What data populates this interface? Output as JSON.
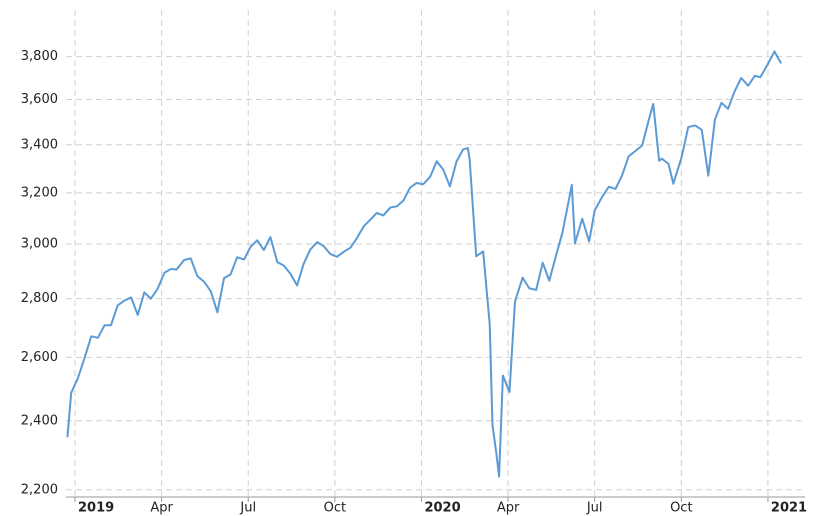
{
  "chart_data": {
    "type": "line",
    "log_scale": true,
    "grid": true,
    "color": "#5b9bd5",
    "x": [
      2018.978,
      2018.989,
      2019.008,
      2019.027,
      2019.047,
      2019.066,
      2019.085,
      2019.104,
      2019.123,
      2019.142,
      2019.162,
      2019.181,
      2019.2,
      2019.219,
      2019.238,
      2019.258,
      2019.277,
      2019.293,
      2019.315,
      2019.334,
      2019.353,
      2019.373,
      2019.392,
      2019.411,
      2019.43,
      2019.449,
      2019.468,
      2019.488,
      2019.507,
      2019.526,
      2019.545,
      2019.564,
      2019.584,
      2019.603,
      2019.622,
      2019.641,
      2019.66,
      2019.679,
      2019.699,
      2019.718,
      2019.737,
      2019.756,
      2019.775,
      2019.795,
      2019.814,
      2019.833,
      2019.852,
      2019.871,
      2019.89,
      2019.91,
      2019.929,
      2019.948,
      2019.967,
      2019.986,
      2020.005,
      2020.025,
      2020.044,
      2020.063,
      2020.082,
      2020.101,
      2020.12,
      2020.134,
      2020.139,
      2020.158,
      2020.178,
      2020.197,
      2020.205,
      2020.216,
      2020.224,
      2020.235,
      2020.254,
      2020.27,
      2020.292,
      2020.311,
      2020.331,
      2020.35,
      2020.369,
      2020.388,
      2020.407,
      2020.434,
      2020.443,
      2020.464,
      2020.484,
      2020.5,
      2020.522,
      2020.541,
      2020.56,
      2020.579,
      2020.598,
      2020.617,
      2020.637,
      2020.656,
      2020.669,
      2020.686,
      2020.694,
      2020.713,
      2020.727,
      2020.751,
      2020.77,
      2020.79,
      2020.809,
      2020.828,
      2020.847,
      2020.866,
      2020.885,
      2020.904,
      2020.923,
      2020.943,
      2020.962,
      2020.978,
      2020.997,
      2021.019,
      2021.038
    ],
    "values": [
      2351,
      2486,
      2532,
      2596,
      2670,
      2665,
      2707,
      2708,
      2776,
      2793,
      2804,
      2743,
      2822,
      2800,
      2834,
      2893,
      2907,
      2905,
      2940,
      2946,
      2881,
      2860,
      2826,
      2752,
      2873,
      2887,
      2950,
      2942,
      2990,
      3014,
      2977,
      3026,
      2932,
      2919,
      2889,
      2847,
      2926,
      2979,
      3007,
      2992,
      2962,
      2952,
      2970,
      2986,
      3023,
      3067,
      3093,
      3120,
      3110,
      3141,
      3146,
      3169,
      3221,
      3240,
      3235,
      3265,
      3330,
      3295,
      3226,
      3328,
      3380,
      3386,
      3338,
      2954,
      2972,
      2711,
      2386,
      2305,
      2237,
      2541,
      2489,
      2790,
      2875,
      2837,
      2831,
      2930,
      2864,
      2955,
      3044,
      3232,
      3002,
      3097,
      3009,
      3130,
      3185,
      3225,
      3216,
      3271,
      3351,
      3373,
      3397,
      3508,
      3580,
      3332,
      3341,
      3319,
      3237,
      3348,
      3477,
      3484,
      3465,
      3270,
      3510,
      3585,
      3558,
      3638,
      3699,
      3663,
      3709,
      3703,
      3756,
      3825,
      3768
    ],
    "xlim": [
      2018.974,
      2021.107
    ],
    "xticks": [
      2019,
      {
        "value": 2019.25,
        "label": "Apr"
      },
      {
        "value": 2019.5,
        "label": "Jul"
      },
      {
        "value": 2019.75,
        "label": "Oct"
      },
      2020,
      {
        "value": 2020.25,
        "label": "Apr"
      },
      {
        "value": 2020.5,
        "label": "Jul"
      },
      {
        "value": 2020.75,
        "label": "Oct"
      },
      2021
    ],
    "ylim": [
      2180,
      3930
    ],
    "yticks": [
      {
        "value": 2200,
        "label": "2,200"
      },
      {
        "value": 2400,
        "label": "2,400"
      },
      {
        "value": 2600,
        "label": "2,600"
      },
      {
        "value": 2800,
        "label": "2,800"
      },
      {
        "value": 3000,
        "label": "3,000"
      },
      {
        "value": 3200,
        "label": "3,200"
      },
      {
        "value": 3400,
        "label": "3,400"
      },
      {
        "value": 3600,
        "label": "3,600"
      },
      {
        "value": 3800,
        "label": "3,800"
      }
    ]
  }
}
